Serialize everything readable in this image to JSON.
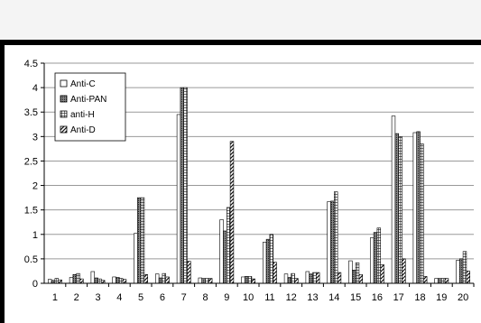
{
  "chart_data": {
    "type": "bar",
    "categories": [
      "1",
      "2",
      "3",
      "4",
      "5",
      "6",
      "7",
      "8",
      "9",
      "10",
      "11",
      "12",
      "13",
      "14",
      "15",
      "16",
      "17",
      "18",
      "19",
      "20"
    ],
    "ylim": [
      0,
      4.5
    ],
    "yticks": [
      "0",
      "0.5",
      "1",
      "1.5",
      "2",
      "2.5",
      "3",
      "3.5",
      "4",
      "4.5"
    ],
    "grid": true,
    "legend_position": "top-left",
    "series": [
      {
        "name": "Anti-C",
        "pattern": "white",
        "values": [
          0.08,
          0.12,
          0.24,
          0.13,
          1.02,
          0.19,
          3.45,
          0.11,
          1.3,
          0.13,
          0.84,
          0.19,
          0.24,
          1.67,
          0.46,
          0.93,
          3.42,
          3.08,
          0.1,
          0.47
        ]
      },
      {
        "name": "Anti-PAN",
        "pattern": "dots",
        "values": [
          0.06,
          0.18,
          0.11,
          0.12,
          1.75,
          0.11,
          4.0,
          0.1,
          1.07,
          0.14,
          0.9,
          0.12,
          0.19,
          1.68,
          0.27,
          1.04,
          3.06,
          3.1,
          0.1,
          0.5
        ]
      },
      {
        "name": "anti-H",
        "pattern": "grid",
        "values": [
          0.1,
          0.2,
          0.09,
          0.1,
          1.75,
          0.2,
          4.0,
          0.1,
          1.55,
          0.14,
          1.0,
          0.2,
          0.22,
          1.87,
          0.42,
          1.13,
          3.0,
          2.85,
          0.1,
          0.65
        ]
      },
      {
        "name": "Anti-D",
        "pattern": "diagonal",
        "values": [
          0.07,
          0.09,
          0.06,
          0.08,
          0.18,
          0.13,
          0.45,
          0.1,
          2.9,
          0.09,
          0.43,
          0.1,
          0.22,
          0.22,
          0.18,
          0.38,
          0.5,
          0.14,
          0.1,
          0.25
        ]
      }
    ]
  }
}
